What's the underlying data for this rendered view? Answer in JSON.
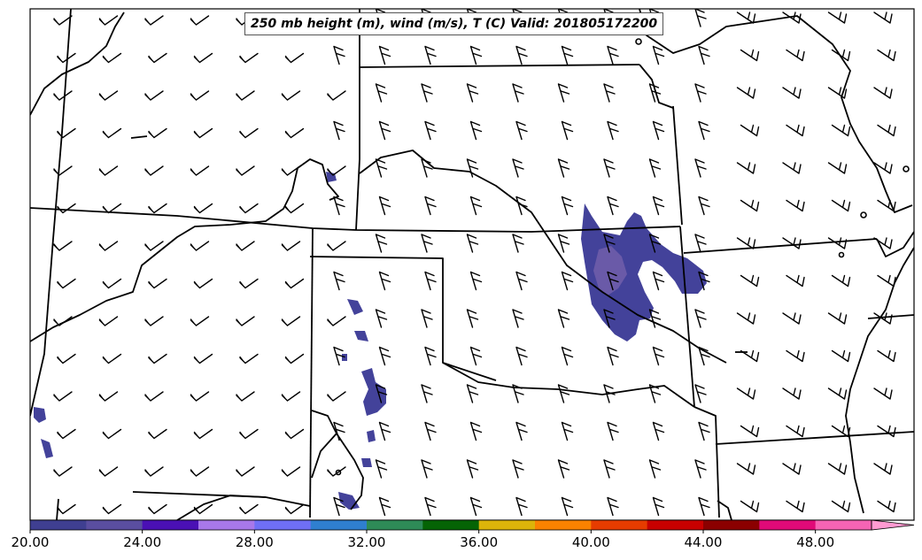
{
  "title": "250 mb height (m), wind (m/s), T (C) Valid: 201805172200",
  "colorbar": {
    "colors": [
      "#3f3f91",
      "#5a4ea0",
      "#4a10b4",
      "#a878ea",
      "#6f6ff5",
      "#2f7fcf",
      "#2e8b57",
      "#056405",
      "#dcb40a",
      "#fa8200",
      "#e63c00",
      "#c80000",
      "#8b0000",
      "#e00a78",
      "#f564b4",
      "#ff9bd2"
    ],
    "tick_labels": [
      "20.00",
      "24.00",
      "28.00",
      "32.00",
      "36.00",
      "40.00",
      "44.00",
      "48.00"
    ],
    "extend": "max"
  },
  "colors": {
    "temperature_fill": "#43429a",
    "temperature_fill_warm": "#6a5aa8",
    "borders": "#000000"
  }
}
